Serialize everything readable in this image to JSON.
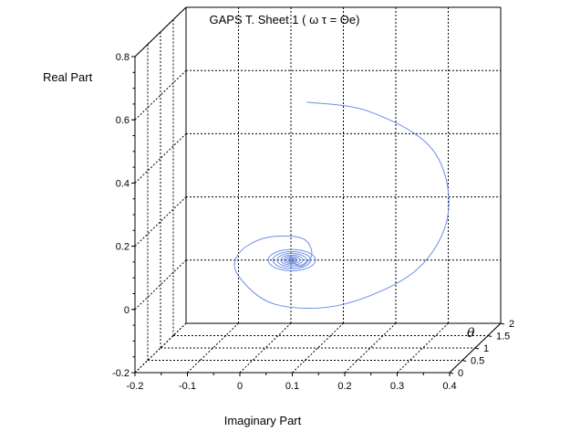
{
  "chart_data": {
    "type": "line",
    "title": "GAPS T. Sheet 1 ( ω τ = Θe)",
    "xlabel": "Imaginary Part",
    "ylabel": "Real Part",
    "zlabel": "θ",
    "xlim": [
      -0.2,
      0.4
    ],
    "ylim": [
      -0.2,
      0.8
    ],
    "zlim": [
      0,
      2
    ],
    "x_ticks": [
      "-0.2",
      "-0.1",
      "0",
      "0.1",
      "0.2",
      "0.3",
      "0.4"
    ],
    "y_ticks": [
      "-0.2",
      "0",
      "0.2",
      "0.4",
      "0.6",
      "0.8"
    ],
    "z_ticks": [
      "0",
      "0.5",
      "1",
      "1.5",
      "2"
    ],
    "grid": true,
    "line_color": "#6e8ee8",
    "series": [
      {
        "curve": "spiral",
        "points": [
          {
            "x": 0.03,
            "y": 0.5,
            "z": 2
          },
          {
            "x": 0.15,
            "y": 0.47,
            "z": 2
          },
          {
            "x": 0.27,
            "y": 0.35,
            "z": 2
          },
          {
            "x": 0.3,
            "y": 0.15,
            "z": 2
          },
          {
            "x": 0.24,
            "y": -0.03,
            "z": 2
          },
          {
            "x": 0.1,
            "y": -0.14,
            "z": 2
          },
          {
            "x": -0.03,
            "y": -0.14,
            "z": 2
          },
          {
            "x": -0.1,
            "y": -0.05,
            "z": 2
          },
          {
            "x": -0.1,
            "y": 0.02,
            "z": 2
          },
          {
            "x": -0.05,
            "y": 0.07,
            "z": 2
          },
          {
            "x": 0.02,
            "y": 0.07,
            "z": 2
          },
          {
            "x": 0.04,
            "y": 0.02,
            "z": 2
          },
          {
            "x": 0.02,
            "y": -0.02,
            "z": 2
          },
          {
            "x": 0.0,
            "y": 0.0,
            "z": 2
          }
        ]
      }
    ]
  }
}
